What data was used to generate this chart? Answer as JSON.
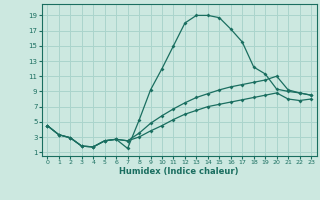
{
  "xlabel": "Humidex (Indice chaleur)",
  "xlim": [
    -0.5,
    23.5
  ],
  "ylim": [
    0.5,
    20.5
  ],
  "yticks": [
    1,
    3,
    5,
    7,
    9,
    11,
    13,
    15,
    17,
    19
  ],
  "xticks": [
    0,
    1,
    2,
    3,
    4,
    5,
    6,
    7,
    8,
    9,
    10,
    11,
    12,
    13,
    14,
    15,
    16,
    17,
    18,
    19,
    20,
    21,
    22,
    23
  ],
  "bg_color": "#cce8e0",
  "grid_color": "#aad4cc",
  "line_color": "#1a6e60",
  "line1_x": [
    0,
    1,
    2,
    3,
    4,
    5,
    6,
    7,
    8,
    9,
    10,
    11,
    12,
    13,
    14,
    15,
    16,
    17,
    18,
    19,
    20,
    21,
    22,
    23
  ],
  "line1_y": [
    4.5,
    3.3,
    2.9,
    1.8,
    1.7,
    2.5,
    2.7,
    1.5,
    5.2,
    9.2,
    12.0,
    15.0,
    18.0,
    19.0,
    19.0,
    18.7,
    17.2,
    15.5,
    12.2,
    11.3,
    9.3,
    9.0,
    8.8,
    8.5
  ],
  "line2_x": [
    0,
    1,
    2,
    3,
    4,
    5,
    6,
    7,
    8,
    9,
    10,
    11,
    12,
    13,
    14,
    15,
    16,
    17,
    18,
    19,
    20,
    21,
    22,
    23
  ],
  "line2_y": [
    4.5,
    3.3,
    2.9,
    1.8,
    1.7,
    2.5,
    2.7,
    2.5,
    3.5,
    4.8,
    5.8,
    6.7,
    7.5,
    8.2,
    8.7,
    9.2,
    9.6,
    9.9,
    10.2,
    10.5,
    11.0,
    9.2,
    8.8,
    8.5
  ],
  "line3_x": [
    0,
    1,
    2,
    3,
    4,
    5,
    6,
    7,
    8,
    9,
    10,
    11,
    12,
    13,
    14,
    15,
    16,
    17,
    18,
    19,
    20,
    21,
    22,
    23
  ],
  "line3_y": [
    4.5,
    3.3,
    2.9,
    1.8,
    1.7,
    2.5,
    2.7,
    2.5,
    3.0,
    3.8,
    4.5,
    5.3,
    6.0,
    6.5,
    7.0,
    7.3,
    7.6,
    7.9,
    8.2,
    8.5,
    8.8,
    8.0,
    7.8,
    8.0
  ]
}
